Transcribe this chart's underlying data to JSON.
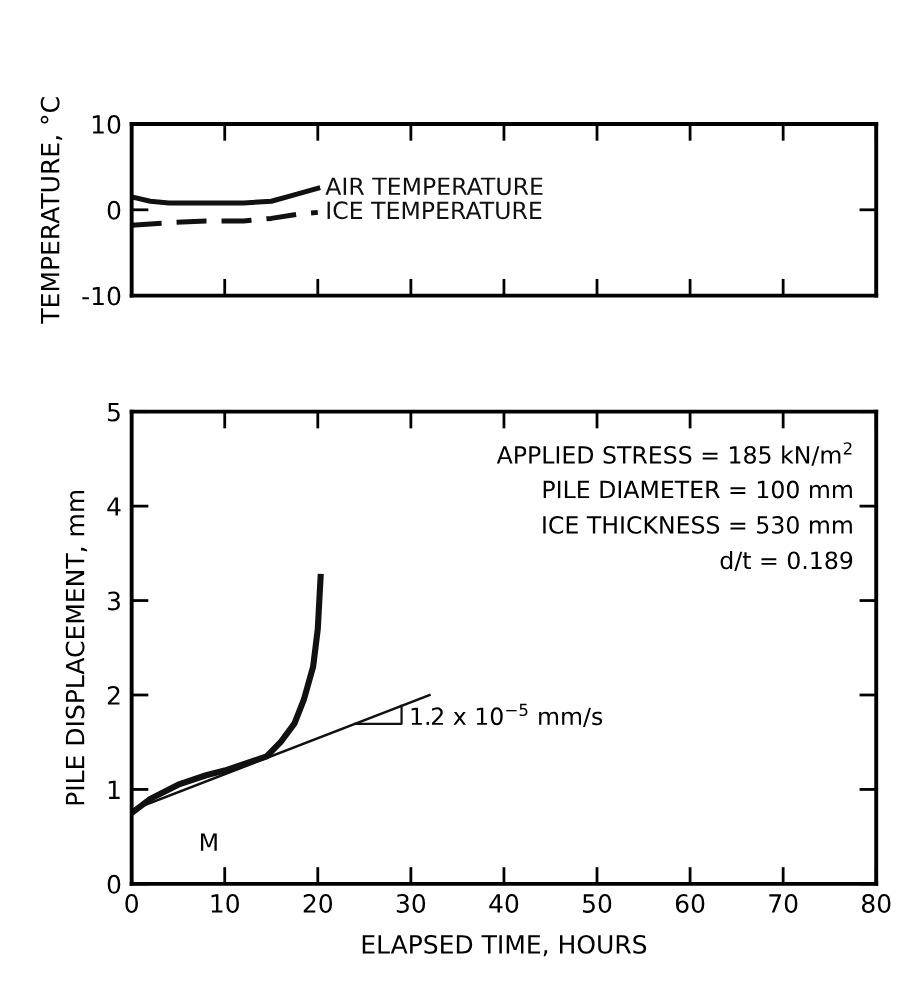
{
  "chart_data": [
    {
      "type": "line",
      "ylabel": "TEMPERATURE, °C",
      "xlim": [
        0,
        80
      ],
      "xticks": [
        0,
        10,
        20,
        30,
        40,
        50,
        60,
        70,
        80
      ],
      "ylim": [
        -10,
        10
      ],
      "yticks": [
        -10,
        0,
        10
      ],
      "tick_labels": "y",
      "grid": false,
      "legend": false,
      "series": [
        {
          "name": "AIR TEMPERATURE",
          "color": "#111111",
          "line_style": "solid",
          "x": [
            0,
            2,
            4,
            8,
            12,
            15,
            17,
            19,
            20
          ],
          "values": [
            1.5,
            1.0,
            0.8,
            0.8,
            0.8,
            1.0,
            1.6,
            2.2,
            2.5
          ]
        },
        {
          "name": "ICE TEMPERATURE",
          "color": "#111111",
          "line_style": "dashed",
          "x": [
            0,
            4,
            8,
            12,
            15,
            18,
            20
          ],
          "values": [
            -1.8,
            -1.5,
            -1.3,
            -1.3,
            -1.0,
            -0.5,
            -0.3
          ]
        }
      ]
    },
    {
      "type": "line",
      "xlabel": "ELAPSED TIME, HOURS",
      "ylabel": "PILE DISPLACEMENT, mm",
      "xlim": [
        0,
        80
      ],
      "xticks": [
        0,
        10,
        20,
        30,
        40,
        50,
        60,
        70,
        80
      ],
      "ylim": [
        0,
        5
      ],
      "yticks": [
        0,
        1,
        2,
        3,
        4,
        5
      ],
      "grid": false,
      "legend": false,
      "series": [
        {
          "color": "#111111",
          "line_style": "solid",
          "x": [
            0,
            2,
            5,
            8,
            10,
            13,
            14.5,
            16,
            17.5,
            18.5,
            19.5,
            20,
            20.3
          ],
          "values": [
            0.75,
            0.9,
            1.05,
            1.15,
            1.2,
            1.3,
            1.35,
            1.5,
            1.7,
            1.95,
            2.3,
            2.7,
            3.25
          ]
        },
        {
          "color": "#111111",
          "line_style": "solid",
          "x": [
            0,
            32
          ],
          "values": [
            0.78,
            2.0
          ]
        }
      ],
      "annotations": [
        "APPLIED STRESS = 185 kN/m$^{2}$",
        "PILE DIAMETER = 100 mm",
        "ICE THICKNESS = 530 mm",
        "d/t = 0.189",
        {
          "text": "1.2 x 10$^{−5}$ mm/s",
          "x": 29,
          "y": 1.88
        },
        "M"
      ]
    }
  ]
}
